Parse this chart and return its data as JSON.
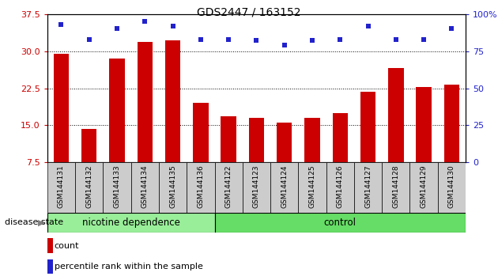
{
  "title": "GDS2447 / 163152",
  "samples": [
    "GSM144131",
    "GSM144132",
    "GSM144133",
    "GSM144134",
    "GSM144135",
    "GSM144136",
    "GSM144122",
    "GSM144123",
    "GSM144124",
    "GSM144125",
    "GSM144126",
    "GSM144127",
    "GSM144128",
    "GSM144129",
    "GSM144130"
  ],
  "counts": [
    29.5,
    14.3,
    28.5,
    31.8,
    32.2,
    19.5,
    16.8,
    16.5,
    15.5,
    16.5,
    17.5,
    21.8,
    26.5,
    22.8,
    23.3
  ],
  "percentiles": [
    93,
    83,
    90,
    95,
    92,
    83,
    83,
    82,
    79,
    82,
    83,
    92,
    83,
    83,
    90
  ],
  "group1_label": "nicotine dependence",
  "group2_label": "control",
  "group1_count": 6,
  "group2_count": 9,
  "ylim_left": [
    7.5,
    37.5
  ],
  "ylim_right": [
    0,
    100
  ],
  "yticks_left": [
    7.5,
    15.0,
    22.5,
    30.0,
    37.5
  ],
  "yticks_right": [
    0,
    25,
    50,
    75,
    100
  ],
  "bar_color": "#cc0000",
  "dot_color": "#2222cc",
  "group1_color": "#99ee99",
  "group2_color": "#66dd66",
  "bg_color": "#cccccc",
  "legend_count_label": "count",
  "legend_pct_label": "percentile rank within the sample",
  "disease_state_label": "disease state"
}
